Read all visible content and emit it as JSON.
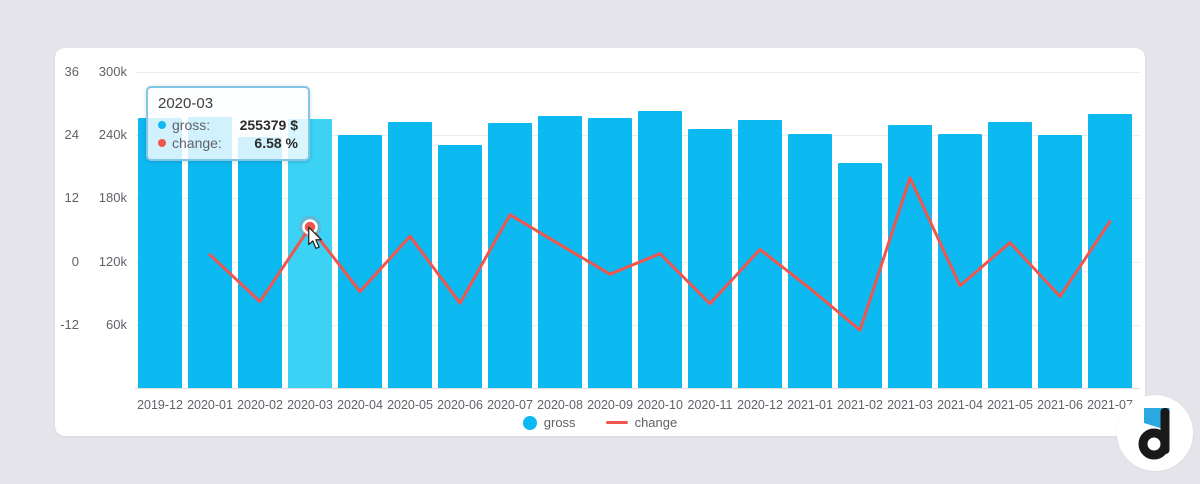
{
  "page": {
    "background": "#e5e4ea",
    "card_background": "#ffffff"
  },
  "chart_data": {
    "type": "bar+line",
    "categories": [
      "2019-12",
      "2020-01",
      "2020-02",
      "2020-03",
      "2020-04",
      "2020-05",
      "2020-06",
      "2020-07",
      "2020-08",
      "2020-09",
      "2020-10",
      "2020-11",
      "2020-12",
      "2021-01",
      "2021-02",
      "2021-03",
      "2021-04",
      "2021-05",
      "2021-06",
      "2021-07"
    ],
    "series": [
      {
        "name": "gross",
        "type": "bar",
        "unit": "$",
        "values": [
          256500,
          257600,
          238700,
          255379,
          240400,
          252900,
          231000,
          251900,
          258600,
          256700,
          263400,
          246200,
          254800,
          241400,
          213900,
          250000,
          241500,
          252800,
          240300,
          260500
        ]
      },
      {
        "name": "change",
        "type": "line",
        "unit": "%",
        "values": [
          null,
          1.3,
          -7.6,
          6.58,
          -5.7,
          4.8,
          -7.9,
          8.9,
          3.2,
          -2.4,
          1.5,
          -8.0,
          2.3,
          -5.1,
          -13.0,
          15.9,
          -4.6,
          3.6,
          -6.6,
          7.6
        ]
      }
    ],
    "axis_left_change": {
      "range": [
        -24,
        36
      ],
      "tick_labels": [
        "36",
        "24",
        "12",
        "0",
        "-12"
      ]
    },
    "axis_left_gross": {
      "range": [
        0,
        300000
      ],
      "tick_labels": [
        "300k",
        "240k",
        "180k",
        "120k",
        "60k"
      ]
    },
    "highlight_index": 3,
    "grid": true,
    "colors": {
      "bar": "#0db9f1",
      "bar_highlight": "#3bd2f6",
      "line": "#f0564d",
      "grid": "#ececec",
      "axis_line": "#dedede",
      "tick_text": "#5f6368"
    },
    "legend": {
      "position": "bottom",
      "items": [
        {
          "label": "gross",
          "marker": "circle",
          "color": "#0db9f1"
        },
        {
          "label": "change",
          "marker": "line",
          "color": "#f0564d"
        }
      ]
    }
  },
  "tooltip": {
    "title": "2020-03",
    "rows": [
      {
        "label": "gross:",
        "value": "255379 $",
        "dot_color": "#0db9f1"
      },
      {
        "label": "change:",
        "value": "6.58 %",
        "dot_color": "#f0564d"
      }
    ]
  },
  "logo": {
    "letter": "d",
    "flag_color": "#2aa9e0",
    "letter_color": "#191919"
  }
}
